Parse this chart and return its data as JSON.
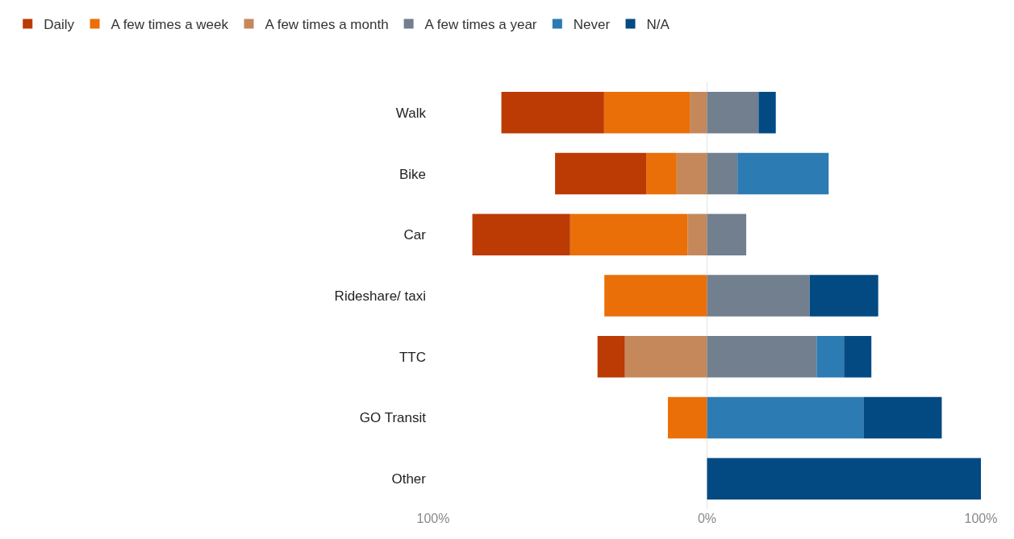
{
  "chart_data": {
    "type": "bar",
    "orientation": "horizontal",
    "stacked": true,
    "categories": [
      "Walk",
      "Bike",
      "Car",
      "Rideshare/ taxi",
      "TTC",
      "GO Transit",
      "Other"
    ],
    "series": [
      {
        "name": "A few times a month",
        "color": "#c4885b",
        "values": [
          -6.3,
          -11.1,
          -7.1,
          null,
          -30,
          null,
          null
        ]
      },
      {
        "name": "A few times a week",
        "color": "#ea6f08",
        "values": [
          -31.3,
          -11.1,
          -42.9,
          -37.5,
          null,
          -14.3,
          null
        ]
      },
      {
        "name": "Daily",
        "color": "#bc3a03",
        "values": [
          -37.5,
          -33.3,
          -35.7,
          null,
          -10,
          null,
          null
        ]
      },
      {
        "name": "A few times a year",
        "color": "#717f8f",
        "values": [
          18.8,
          11.1,
          14.3,
          37.5,
          40,
          null,
          null
        ]
      },
      {
        "name": "Never",
        "color": "#2c7bb3",
        "values": [
          null,
          33.3,
          null,
          null,
          10,
          57.1,
          null
        ]
      },
      {
        "name": "N/A",
        "color": "#034a83",
        "values": [
          6.3,
          null,
          null,
          25,
          10,
          28.6,
          100
        ]
      }
    ],
    "xlim": [
      -100,
      100
    ],
    "xticks": [
      {
        "value": -100,
        "label": "100%"
      },
      {
        "value": 0,
        "label": "0%"
      },
      {
        "value": 100,
        "label": "100%"
      }
    ],
    "grid": "x",
    "legend": "top left"
  }
}
